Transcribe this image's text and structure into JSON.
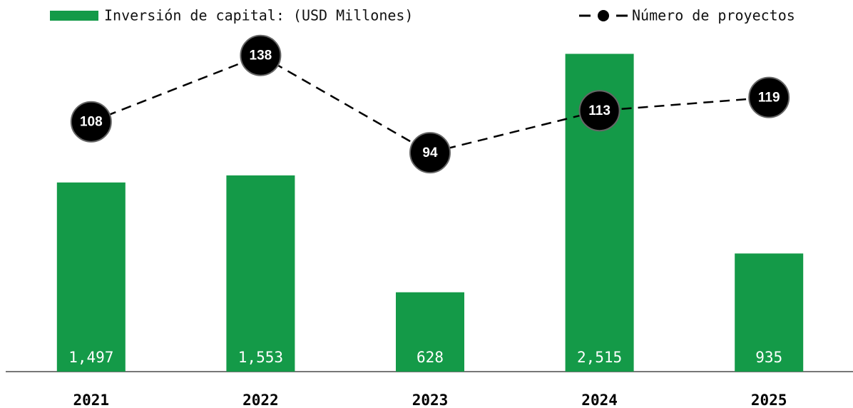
{
  "chart_data": {
    "type": "bar",
    "categories": [
      "2021",
      "2022",
      "2023",
      "2024",
      "2025"
    ],
    "ylim": [
      0,
      2800
    ],
    "y2lim": [
      -5,
      155
    ],
    "series": [
      {
        "name": "Inversión de capital: (USD Millones)",
        "color": "#149a48",
        "values": [
          1497,
          1553,
          628,
          2515,
          935
        ],
        "value_labels": [
          "1,497",
          "1,553",
          "628",
          "2,515",
          "935"
        ]
      },
      {
        "name": "Número de proyectos",
        "type": "line",
        "axis": "y2",
        "color": "#000000",
        "values": [
          108,
          138,
          94,
          113,
          119
        ]
      }
    ]
  }
}
